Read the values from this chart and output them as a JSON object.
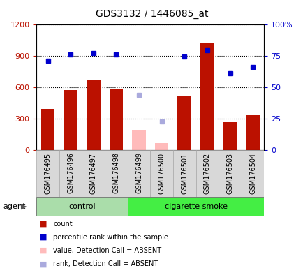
{
  "title": "GDS3132 / 1446085_at",
  "samples": [
    "GSM176495",
    "GSM176496",
    "GSM176497",
    "GSM176498",
    "GSM176499",
    "GSM176500",
    "GSM176501",
    "GSM176502",
    "GSM176503",
    "GSM176504"
  ],
  "groups": [
    "control",
    "control",
    "control",
    "control",
    "cigarette smoke",
    "cigarette smoke",
    "cigarette smoke",
    "cigarette smoke",
    "cigarette smoke",
    "cigarette smoke"
  ],
  "bar_values": [
    390,
    575,
    665,
    580,
    null,
    null,
    510,
    1020,
    265,
    330
  ],
  "bar_absent_values": [
    null,
    null,
    null,
    null,
    190,
    65,
    null,
    null,
    null,
    null
  ],
  "percentile_values": [
    71,
    76,
    77,
    76,
    null,
    null,
    74,
    79,
    61,
    66
  ],
  "percentile_absent_values": [
    null,
    null,
    null,
    null,
    44,
    23,
    null,
    null,
    null,
    null
  ],
  "bar_color": "#bb1100",
  "bar_absent_color": "#ffbbbb",
  "percentile_color": "#0000cc",
  "percentile_absent_color": "#aaaadd",
  "control_color": "#aaddaa",
  "smoke_color": "#44ee44",
  "left_ylim": [
    0,
    1200
  ],
  "right_ylim": [
    0,
    100
  ],
  "left_yticks": [
    0,
    300,
    600,
    900,
    1200
  ],
  "right_yticks": [
    0,
    25,
    50,
    75,
    100
  ],
  "right_yticklabels": [
    "0",
    "25",
    "50",
    "75",
    "100%"
  ],
  "agent_label": "agent",
  "group_labels": [
    "control",
    "cigarette smoke"
  ],
  "legend_items": [
    {
      "label": "count",
      "color": "#bb1100"
    },
    {
      "label": "percentile rank within the sample",
      "color": "#0000cc"
    },
    {
      "label": "value, Detection Call = ABSENT",
      "color": "#ffbbbb"
    },
    {
      "label": "rank, Detection Call = ABSENT",
      "color": "#aaaadd"
    }
  ],
  "bar_width": 0.6,
  "sample_bg": "#d8d8d8",
  "plot_bg": "#ffffff"
}
